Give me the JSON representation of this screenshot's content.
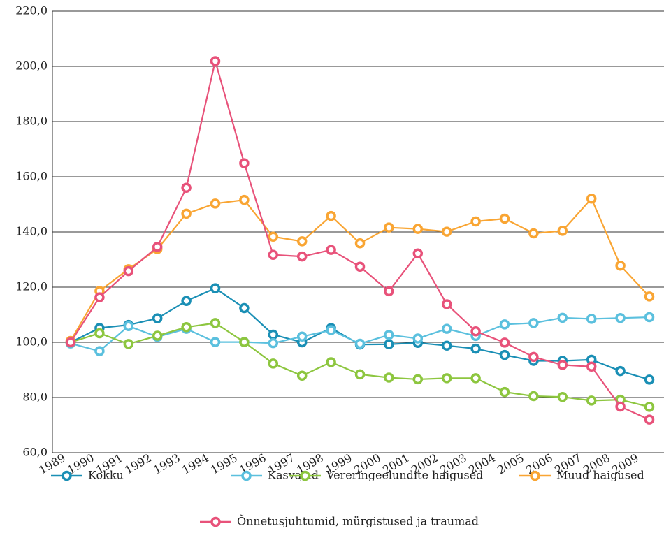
{
  "chart_data": {
    "type": "line",
    "categories": [
      "1989",
      "1990",
      "1991",
      "1992",
      "1993",
      "1994",
      "1995",
      "1996",
      "1997",
      "1998",
      "1999",
      "2000",
      "2001",
      "2002",
      "2003",
      "2004",
      "2005",
      "2006",
      "2007",
      "2008",
      "2009"
    ],
    "series": [
      {
        "name": "Kokku",
        "color": "#1a8fb5",
        "values": [
          100,
          105.2,
          106.3,
          108.7,
          115,
          119.6,
          112.4,
          102.8,
          100,
          105.2,
          99.2,
          99.3,
          99.8,
          98.8,
          97.7,
          95.4,
          93.3,
          93.3,
          93.7,
          89.6,
          86.5
        ]
      },
      {
        "name": "Kasvajad",
        "color": "#5bc0de",
        "values": [
          99.6,
          96.8,
          105.9,
          102,
          104.9,
          100.1,
          100.1,
          99.7,
          102.1,
          104.4,
          99.5,
          102.7,
          101.4,
          104.9,
          102.3,
          106.5,
          107,
          108.9,
          108.5,
          108.8,
          109.1
        ]
      },
      {
        "name": "Vereringeelundite haigused",
        "color": "#8dc63f",
        "values": [
          100,
          103.3,
          99.4,
          102.4,
          105.5,
          107,
          100.1,
          92.3,
          87.9,
          92.8,
          88.4,
          87.2,
          86.6,
          87,
          87,
          82,
          80.5,
          80.2,
          78.9,
          79.2,
          76.6
        ]
      },
      {
        "name": "Muud haigused",
        "color": "#f9a533",
        "values": [
          100.5,
          118.6,
          126.5,
          133.8,
          146.6,
          150.3,
          151.6,
          138.3,
          136.6,
          145.8,
          135.9,
          141.6,
          141.1,
          140.1,
          143.8,
          144.8,
          139.5,
          140.4,
          152.1,
          127.8,
          116.6
        ]
      },
      {
        "name": "Õnnetusjuhtumid, mürgistused ja traumad",
        "color": "#e8527a",
        "values": [
          100,
          116.3,
          125.8,
          134.6,
          156,
          201.9,
          164.9,
          131.7,
          131.1,
          133.5,
          127.4,
          118.5,
          132.2,
          113.8,
          104,
          99.9,
          94.7,
          91.8,
          91.2,
          76.7,
          72
        ]
      }
    ],
    "ylim": [
      60,
      220
    ],
    "yticks": [
      {
        "value": 60,
        "label": "60,0"
      },
      {
        "value": 80,
        "label": "80,0"
      },
      {
        "value": 100,
        "label": "100,0"
      },
      {
        "value": 120,
        "label": "120,0"
      },
      {
        "value": 140,
        "label": "140,0"
      },
      {
        "value": 160,
        "label": "160,0"
      },
      {
        "value": 180,
        "label": "180,0"
      },
      {
        "value": 200,
        "label": "200,0"
      },
      {
        "value": 220,
        "label": "220,0"
      }
    ],
    "grid": true,
    "legend": "bottom"
  }
}
